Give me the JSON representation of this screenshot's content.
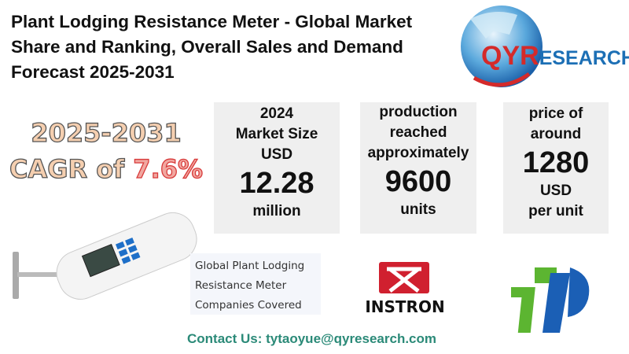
{
  "title": "Plant Lodging Resistance Meter - Global Market Share and Ranking, Overall Sales and Demand Forecast 2025-2031",
  "brand": {
    "logo_text": "QYRESEARCH",
    "colors": {
      "q_red": "#d42a2a",
      "blue": "#1c6fb5"
    }
  },
  "cagr": {
    "period": "2025-2031",
    "prefix": "CAGR of ",
    "value": "7.6%"
  },
  "stats": [
    {
      "lines": [
        "2024",
        "Market Size",
        "USD"
      ],
      "value": "12.28",
      "unit": "million"
    },
    {
      "lines": [
        "production",
        "reached",
        "approximately"
      ],
      "value": "9600",
      "unit": "units"
    },
    {
      "lines": [
        "price of",
        "around"
      ],
      "value": "1280",
      "unit_lines": [
        "USD",
        "per unit"
      ]
    }
  ],
  "companies": {
    "lines": [
      "Global Plant Lodging",
      "Resistance Meter",
      "Companies Covered"
    ],
    "logos": [
      "INSTRON",
      "TP"
    ]
  },
  "contact": "Contact Us: tytaoyue@qyresearch.com"
}
